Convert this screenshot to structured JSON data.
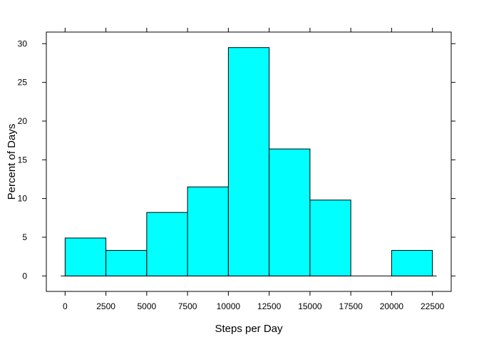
{
  "chart_data": {
    "type": "bar",
    "subtype": "histogram",
    "xlabel": "Steps per Day",
    "ylabel": "Percent of Days",
    "bins": [
      {
        "start": 0,
        "end": 2500,
        "value": 4.9
      },
      {
        "start": 2500,
        "end": 5000,
        "value": 3.3
      },
      {
        "start": 5000,
        "end": 7500,
        "value": 8.2
      },
      {
        "start": 7500,
        "end": 10000,
        "value": 11.5
      },
      {
        "start": 10000,
        "end": 12500,
        "value": 29.5
      },
      {
        "start": 12500,
        "end": 15000,
        "value": 16.4
      },
      {
        "start": 15000,
        "end": 17500,
        "value": 9.8
      },
      {
        "start": 17500,
        "end": 20000,
        "value": 0
      },
      {
        "start": 20000,
        "end": 22500,
        "value": 3.3
      }
    ],
    "xticks": [
      0,
      2500,
      5000,
      7500,
      10000,
      12500,
      15000,
      17500,
      20000,
      22500
    ],
    "yticks": [
      0,
      5,
      10,
      15,
      20,
      25,
      30
    ],
    "xlim": [
      -1150,
      23650
    ],
    "ylim": [
      -2,
      31.5
    ],
    "bar_color": "#00FFFF",
    "grid": false
  }
}
